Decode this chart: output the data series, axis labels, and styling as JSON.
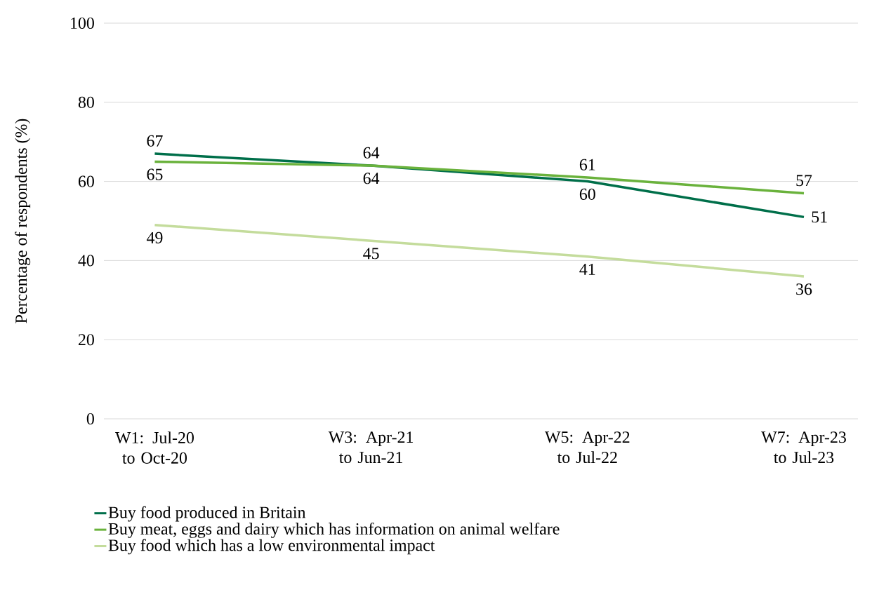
{
  "chart_data": {
    "type": "line",
    "ylabel": "Percentage of respondents (%)",
    "categories": [
      "W1: Jul-20 to Oct-20",
      "W3: Apr-21 to Jun-21",
      "W5: Apr-22 to Jul-22",
      "W7: Apr-23 to Jul-23"
    ],
    "series": [
      {
        "name": "Buy food produced in Britain",
        "color": "#006f4a",
        "values": [
          67,
          64,
          60,
          51
        ]
      },
      {
        "name": "Buy meat, eggs and dairy which has information on animal welfare",
        "color": "#6ab23c",
        "values": [
          65,
          64,
          61,
          57
        ]
      },
      {
        "name": "Buy food which has a low environmental impact",
        "color": "#c4dc9c",
        "values": [
          49,
          45,
          41,
          36
        ]
      }
    ],
    "ylim": [
      0,
      100
    ],
    "yticks": [
      0,
      20,
      40,
      60,
      80,
      100
    ],
    "grid": "y",
    "legend": "bottom",
    "marker": "none",
    "line_style": "solid",
    "data_labels": true
  }
}
